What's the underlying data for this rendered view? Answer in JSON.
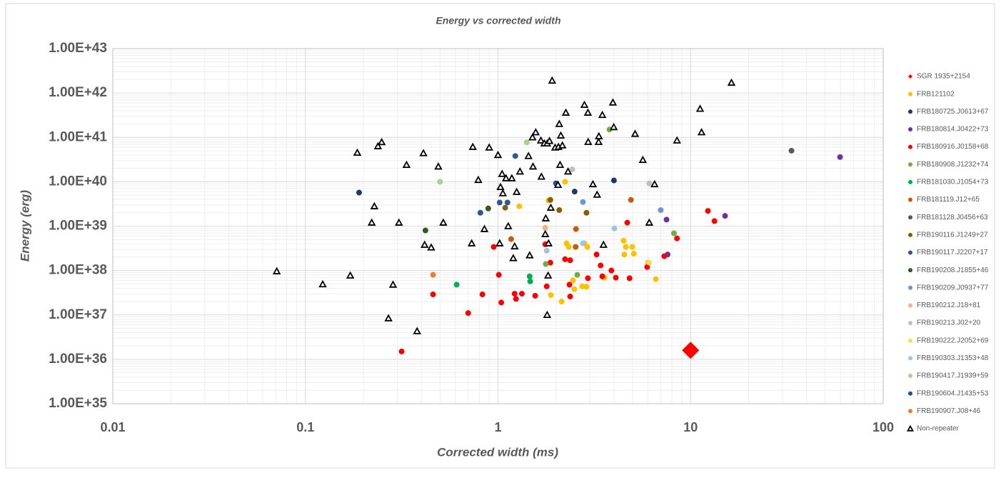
{
  "chart_data": {
    "type": "scatter",
    "title": "Energy vs corrected width",
    "x_label": "Corrected width (ms)",
    "y_label": "Energy (erg)",
    "xscale": "log",
    "yscale": "log",
    "grid": true,
    "minor_grid": true,
    "legend": "right",
    "xlim": [
      0.01,
      100
    ],
    "xticks": [
      0.01,
      0.1,
      1,
      10,
      100
    ],
    "ylim": [
      1e+35,
      1e+43
    ],
    "yticks": [
      {
        "value": 1e+35,
        "label": "1.00E+35"
      },
      {
        "value": 1e+36,
        "label": "1.00E+36"
      },
      {
        "value": 1e+37,
        "label": "1.00E+37"
      },
      {
        "value": 1e+38,
        "label": "1.00E+38"
      },
      {
        "value": 1e+39,
        "label": "1.00E+39"
      },
      {
        "value": 1e+40,
        "label": "1.00E+40"
      },
      {
        "value": 1e+41,
        "label": "1.00E+41"
      },
      {
        "value": 1e+42,
        "label": "1.00E+42"
      },
      {
        "value": 1e+43,
        "label": "1.00E+43"
      }
    ],
    "series": [
      {
        "name": "SGR 1935+2154",
        "color": "#ff0000",
        "marker": "diamond",
        "x": [
          10
        ],
        "values": [
          1.6e+36
        ]
      },
      {
        "name": "FRB121102",
        "color": "#ffc000",
        "marker": "circle",
        "x": [
          1.29,
          1.83,
          2.23,
          2.27,
          2.33,
          2.81,
          2.91,
          1.88,
          2.14,
          2.49,
          2.88,
          4.49,
          4.61,
          4.98,
          5.07,
          4.53,
          6.01,
          6.6,
          3.57,
          2.45,
          2.74
        ],
        "values": [
          2.8e+39,
          3.8e+39,
          1e+40,
          4.1e+38,
          3.4e+38,
          4.1e+38,
          3.4e+38,
          2.8e+37,
          2e+37,
          3.8e+37,
          4.3e+37,
          4.7e+38,
          3.4e+38,
          3.4e+38,
          2.4e+38,
          2.3e+38,
          1.5e+38,
          6.4e+37,
          6.9e+37,
          6e+37,
          4.4e+37
        ]
      },
      {
        "name": "FRB180725.J0613+67",
        "color": "#203864",
        "marker": "circle",
        "x": [
          0.19,
          2.5,
          4.0
        ],
        "values": [
          5.7e+39,
          6e+39,
          1.07e+40
        ]
      },
      {
        "name": "FRB180814.J0422+73",
        "color": "#7030a0",
        "marker": "circle",
        "x": [
          59.7,
          15.1,
          7.5,
          7.6
        ],
        "values": [
          3.6e+40,
          1.7e+39,
          1.4e+39,
          2.3e+38
        ]
      },
      {
        "name": "FRB180916.J0158+68",
        "color": "#ff0000",
        "marker": "circle",
        "x": [
          0.316,
          0.46,
          0.7,
          0.83,
          0.95,
          1.01,
          1.04,
          1.22,
          1.24,
          1.33,
          1.56,
          1.79,
          1.87,
          1.76,
          2.23,
          2.37,
          2.35,
          2.37,
          3.25,
          3.41,
          3.48,
          2.93,
          3.88,
          4.09,
          4.82,
          4.69,
          5.95,
          7.3,
          8.5,
          12.3,
          13.3
        ],
        "values": [
          1.5e+36,
          2.9e+37,
          1.1e+37,
          2.9e+37,
          3.4e+38,
          8e+37,
          1.9e+37,
          3e+37,
          2.3e+37,
          3e+37,
          2.7e+37,
          4.4e+37,
          1.5e+38,
          3.9e+38,
          1.8e+38,
          1.7e+38,
          4.8e+37,
          2.6e+37,
          2.3e+38,
          1.3e+38,
          7.4e+37,
          6.7e+37,
          1e+38,
          6.9e+37,
          6.7e+37,
          1.2e+39,
          1.2e+38,
          2.1e+38,
          5.3e+38,
          2.2e+39,
          1.3e+39
        ]
      },
      {
        "name": "FRB180908.J1232+74",
        "color": "#70ad47",
        "marker": "circle",
        "x": [
          3.79,
          8.2,
          2.58,
          1.77
        ],
        "values": [
          1.5e+41,
          6.9e+38,
          8e+37,
          1.4e+38
        ]
      },
      {
        "name": "FRB181030.J1054+73",
        "color": "#00b050",
        "marker": "circle",
        "x": [
          0.61,
          1.46,
          1.47
        ],
        "values": [
          4.8e+37,
          7.4e+37,
          5.7e+37
        ]
      },
      {
        "name": "FRB181119.J12+65",
        "color": "#c55a11",
        "marker": "circle",
        "x": [
          1.17,
          2.54,
          2.53,
          4.9
        ],
        "values": [
          5.1e+38,
          8.6e+38,
          3.4e+38,
          3.9e+39
        ]
      },
      {
        "name": "FRB181128.J0456+63",
        "color": "#595959",
        "marker": "circle",
        "x": [
          33.4
        ],
        "values": [
          5e+40
        ]
      },
      {
        "name": "FRB190116.J1249+27",
        "color": "#806000",
        "marker": "circle",
        "x": [
          1.09,
          2.08,
          2.88,
          1.87
        ],
        "values": [
          2.6e+39,
          2.3e+39,
          2e+39,
          3.9e+39
        ]
      },
      {
        "name": "FRB190117.J2207+17",
        "color": "#2f5597",
        "marker": "circle",
        "x": [
          1.02,
          1.12,
          0.81,
          1.23
        ],
        "values": [
          3.4e+39,
          3.4e+39,
          2e+39,
          3.8e+40
        ]
      },
      {
        "name": "FRB190208.J1855+46",
        "color": "#375623",
        "marker": "circle",
        "x": [
          0.42,
          0.89
        ],
        "values": [
          8e+38,
          2.5e+39
        ]
      },
      {
        "name": "FRB190209.J0937+77",
        "color": "#6f94d6",
        "marker": "circle",
        "x": [
          7.0,
          2.76
        ],
        "values": [
          2.3e+39,
          3.5e+39
        ]
      },
      {
        "name": "FRB190212.J18+81",
        "color": "#f4b183",
        "marker": "circle",
        "x": [
          1.76
        ],
        "values": [
          9.2e+38
        ]
      },
      {
        "name": "FRB190213.J02+20",
        "color": "#bfbfbf",
        "marker": "circle",
        "x": [
          2.43,
          6.1
        ],
        "values": [
          1.9e+40,
          9.2e+39
        ]
      },
      {
        "name": "FRB190222.J2052+69",
        "color": "#ffd966",
        "marker": "circle",
        "x": [
          6.1
        ],
        "values": [
          1.5e+38
        ]
      },
      {
        "name": "FRB190303.J1353+48",
        "color": "#9dc3e6",
        "marker": "circle",
        "x": [
          1.79,
          2.76,
          4.02
        ],
        "values": [
          2.8e+38,
          4.1e+38,
          8.9e+38
        ]
      },
      {
        "name": "FRB190417.J1939+59",
        "color": "#a9d18e",
        "marker": "circle",
        "x": [
          0.5,
          1.41
        ],
        "values": [
          1e+40,
          7.7e+40
        ]
      },
      {
        "name": "FRB190604.J1435+53",
        "color": "#1f4e9f",
        "marker": "circle",
        "x": [
          2.0
        ],
        "values": [
          9.2e+39
        ]
      },
      {
        "name": "FRB190907.J08+46",
        "color": "#ed7d31",
        "marker": "circle",
        "x": [
          0.46
        ],
        "values": [
          8e+37
        ]
      },
      {
        "name": "Non-repeater",
        "color": "#000000",
        "marker": "triangle",
        "x": [
          0.071,
          0.123,
          0.171,
          0.186,
          0.221,
          0.228,
          0.238,
          0.249,
          0.27,
          0.285,
          0.306,
          0.335,
          0.38,
          0.41,
          0.416,
          0.45,
          0.49,
          0.52,
          0.73,
          0.74,
          0.79,
          0.85,
          0.9,
          1.0,
          1.02,
          1.03,
          1.05,
          1.06,
          1.1,
          1.13,
          1.18,
          1.2,
          1.22,
          1.25,
          1.3,
          1.44,
          1.46,
          1.51,
          1.52,
          1.57,
          1.68,
          1.67,
          1.74,
          1.76,
          1.77,
          1.8,
          1.8,
          1.82,
          1.83,
          1.85,
          1.88,
          1.91,
          1.98,
          2.05,
          2.06,
          2.08,
          2.1,
          2.12,
          2.16,
          2.25,
          2.31,
          2.81,
          2.93,
          2.94,
          3.11,
          3.27,
          3.33,
          3.34,
          3.48,
          3.53,
          3.95,
          3.99,
          5.15,
          5.65,
          6.1,
          6.5,
          8.5,
          11.2,
          11.4,
          16.3
        ],
        "values": [
          9.6e+37,
          4.9e+37,
          7.7e+37,
          4.5e+40,
          1.2e+39,
          2.8e+39,
          6.3e+40,
          7.8e+40,
          8.4e+36,
          4.8e+37,
          1.2e+39,
          2.4e+40,
          4.3e+36,
          4.4e+40,
          3.8e+38,
          3.3e+38,
          2.2e+40,
          1.2e+39,
          4.1e+38,
          6.1e+40,
          1.1e+40,
          8.6e+38,
          5.9e+40,
          4e+40,
          4.1e+38,
          7.6e+39,
          1.5e+40,
          5.5e+39,
          1.2e+40,
          1e+39,
          1.2e+40,
          1.9e+38,
          3.5e+38,
          5.9e+39,
          1.7e+40,
          3.8e+40,
          2.2e+38,
          1e+41,
          2.2e+40,
          1.3e+41,
          1.3e+40,
          8.5e+40,
          7.3e+40,
          6.6e+38,
          1.5e+39,
          7.3e+40,
          1e+37,
          7.7e+37,
          4.1e+38,
          8.3e+40,
          2.6e+39,
          1.9e+42,
          5.9e+40,
          8.5e+39,
          6.1e+40,
          2e+41,
          2.4e+40,
          1.1e+41,
          6.6e+40,
          3.6e+41,
          1.7e+40,
          5.4e+41,
          3.6e+41,
          7.9e+40,
          8.8e+39,
          5.1e+39,
          7.9e+40,
          1.06e+41,
          3.2e+41,
          3.8e+38,
          6.1e+41,
          1.7e+41,
          1.2e+41,
          3.1e+40,
          1.2e+39,
          8.8e+39,
          8.5e+40,
          4.4e+41,
          1.3e+41,
          1.7e+42
        ]
      }
    ]
  }
}
